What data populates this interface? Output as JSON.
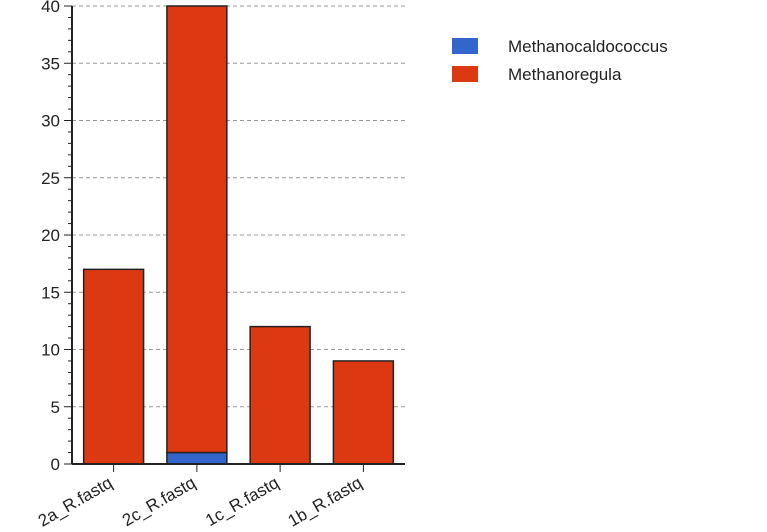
{
  "chart_data": {
    "type": "bar",
    "stacked": true,
    "categories": [
      "2a_R.fastq",
      "2c_R.fastq",
      "1c_R.fastq",
      "1b_R.fastq"
    ],
    "series": [
      {
        "name": "Methanocaldococcus",
        "color": "#3366cc",
        "values": [
          0,
          1,
          0,
          0
        ]
      },
      {
        "name": "Methanoregula",
        "color": "#dc3912",
        "values": [
          17,
          39,
          12,
          9
        ]
      }
    ],
    "yticks": [
      0,
      5,
      10,
      15,
      20,
      25,
      30,
      35,
      40
    ],
    "ylim": [
      0,
      40
    ],
    "grid": true,
    "legend_position": "top-right",
    "title": "",
    "xlabel": "",
    "ylabel": ""
  }
}
